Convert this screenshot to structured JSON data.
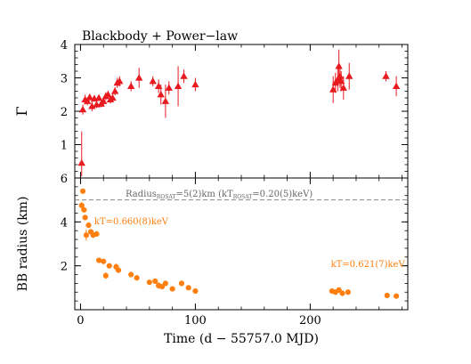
{
  "chart_data": [
    {
      "type": "scatter",
      "title": "Blackbody + Power−law",
      "ylabel": "Γ",
      "xlim": [
        -5,
        285
      ],
      "ylim": [
        0,
        4
      ],
      "yticks": [
        1,
        2,
        3,
        4
      ],
      "color": "#e8191f",
      "marker": "triangle",
      "points": [
        {
          "x": 1,
          "y": 0.45,
          "err": [
            0.4,
            0.95
          ]
        },
        {
          "x": 2,
          "y": 2.05,
          "err": [
            0.15,
            0.15
          ]
        },
        {
          "x": 4,
          "y": 2.35,
          "err": [
            0.15,
            0.15
          ]
        },
        {
          "x": 6,
          "y": 2.3,
          "err": [
            0.12,
            0.12
          ]
        },
        {
          "x": 8,
          "y": 2.42,
          "err": [
            0.1,
            0.1
          ]
        },
        {
          "x": 10,
          "y": 2.15,
          "err": [
            0.15,
            0.15
          ]
        },
        {
          "x": 12,
          "y": 2.38,
          "err": [
            0.1,
            0.1
          ]
        },
        {
          "x": 14,
          "y": 2.2,
          "err": [
            0.1,
            0.1
          ]
        },
        {
          "x": 16,
          "y": 2.4,
          "err": [
            0.1,
            0.1
          ]
        },
        {
          "x": 18,
          "y": 2.22,
          "err": [
            0.1,
            0.1
          ]
        },
        {
          "x": 20,
          "y": 2.3,
          "err": [
            0.1,
            0.1
          ]
        },
        {
          "x": 22,
          "y": 2.45,
          "err": [
            0.12,
            0.12
          ]
        },
        {
          "x": 24,
          "y": 2.5,
          "err": [
            0.12,
            0.12
          ]
        },
        {
          "x": 26,
          "y": 2.35,
          "err": [
            0.12,
            0.12
          ]
        },
        {
          "x": 28,
          "y": 2.4,
          "err": [
            0.12,
            0.12
          ]
        },
        {
          "x": 30,
          "y": 2.6,
          "err": [
            0.12,
            0.12
          ]
        },
        {
          "x": 32,
          "y": 2.85,
          "err": [
            0.15,
            0.15
          ]
        },
        {
          "x": 34,
          "y": 2.9,
          "err": [
            0.15,
            0.15
          ]
        },
        {
          "x": 44,
          "y": 2.75,
          "err": [
            0.15,
            0.15
          ]
        },
        {
          "x": 51,
          "y": 3.0,
          "err": [
            0.3,
            0.3
          ]
        },
        {
          "x": 63,
          "y": 2.9,
          "err": [
            0.15,
            0.15
          ]
        },
        {
          "x": 68,
          "y": 2.75,
          "err": [
            0.2,
            0.2
          ]
        },
        {
          "x": 70,
          "y": 2.5,
          "err": [
            0.3,
            0.3
          ]
        },
        {
          "x": 74,
          "y": 2.3,
          "err": [
            0.5,
            0.5
          ]
        },
        {
          "x": 77,
          "y": 2.7,
          "err": [
            0.2,
            0.2
          ]
        },
        {
          "x": 85,
          "y": 2.75,
          "err": [
            0.6,
            0.6
          ]
        },
        {
          "x": 90,
          "y": 3.05,
          "err": [
            0.2,
            0.2
          ]
        },
        {
          "x": 100,
          "y": 2.8,
          "err": [
            0.2,
            0.2
          ]
        },
        {
          "x": 220,
          "y": 2.65,
          "err": [
            0.4,
            0.4
          ]
        },
        {
          "x": 222,
          "y": 2.85,
          "err": [
            0.3,
            0.3
          ]
        },
        {
          "x": 224,
          "y": 2.95,
          "err": [
            0.35,
            0.35
          ]
        },
        {
          "x": 225,
          "y": 3.35,
          "err": [
            0.5,
            0.5
          ]
        },
        {
          "x": 226,
          "y": 3.05,
          "err": [
            0.35,
            0.35
          ]
        },
        {
          "x": 227,
          "y": 2.9,
          "err": [
            0.3,
            0.3
          ]
        },
        {
          "x": 229,
          "y": 2.7,
          "err": [
            0.35,
            0.35
          ]
        },
        {
          "x": 234,
          "y": 3.05,
          "err": [
            0.4,
            0.4
          ]
        },
        {
          "x": 266,
          "y": 3.05,
          "err": [
            0.15,
            0.15
          ]
        },
        {
          "x": 275,
          "y": 2.75,
          "err": [
            0.3,
            0.3
          ]
        }
      ]
    },
    {
      "type": "scatter",
      "ylabel": "BB radius (km)",
      "xlabel": "Time (d − 55757.0 MJD)",
      "xlim": [
        -5,
        285
      ],
      "ylim": [
        0,
        6
      ],
      "yticks": [
        2,
        4,
        6
      ],
      "xticks": [
        0,
        100,
        200
      ],
      "color": "#ff7f0e",
      "marker": "circle",
      "reference_line": {
        "y": 5.0,
        "label_main": "Radius",
        "label_sub1": "ROSAT",
        "label_mid": "=5(2)km (kT",
        "label_sub2": "ROSAT",
        "label_end": "=0.20(5)keV)"
      },
      "annotations": [
        {
          "text": "kT=0.660(8)keV",
          "x": 12,
          "y": 3.9
        },
        {
          "text": "kT=0.621(7)keV",
          "x": 218,
          "y": 1.95
        }
      ],
      "points": [
        {
          "x": 1,
          "y": 4.75,
          "err": 0.15
        },
        {
          "x": 2,
          "y": 5.4,
          "err": 0.1
        },
        {
          "x": 3,
          "y": 4.55,
          "err": 0.1
        },
        {
          "x": 4,
          "y": 4.2,
          "err": 0.1
        },
        {
          "x": 5,
          "y": 3.4,
          "err": 0.25
        },
        {
          "x": 7,
          "y": 3.85,
          "err": 0.1
        },
        {
          "x": 9,
          "y": 3.55,
          "err": 0.1
        },
        {
          "x": 11,
          "y": 3.4,
          "err": 0.1
        },
        {
          "x": 14,
          "y": 3.45,
          "err": 0.1
        },
        {
          "x": 16,
          "y": 2.25,
          "err": 0.1
        },
        {
          "x": 20,
          "y": 2.2,
          "err": 0.1
        },
        {
          "x": 22,
          "y": 1.55,
          "err": 0.15
        },
        {
          "x": 25,
          "y": 2.0,
          "err": 0.1
        },
        {
          "x": 31,
          "y": 1.95,
          "err": 0.15
        },
        {
          "x": 33,
          "y": 1.8,
          "err": 0.1
        },
        {
          "x": 44,
          "y": 1.6,
          "err": 0.1
        },
        {
          "x": 49,
          "y": 1.45,
          "err": 0.1
        },
        {
          "x": 60,
          "y": 1.25,
          "err": 0.1
        },
        {
          "x": 65,
          "y": 1.3,
          "err": 0.1
        },
        {
          "x": 68,
          "y": 1.1,
          "err": 0.15
        },
        {
          "x": 71,
          "y": 1.05,
          "err": 0.1
        },
        {
          "x": 74,
          "y": 1.2,
          "err": 0.1
        },
        {
          "x": 80,
          "y": 0.95,
          "err": 0.1
        },
        {
          "x": 88,
          "y": 1.2,
          "err": 0.1
        },
        {
          "x": 94,
          "y": 1.0,
          "err": 0.1
        },
        {
          "x": 100,
          "y": 0.85,
          "err": 0.1
        },
        {
          "x": 219,
          "y": 0.85,
          "err": 0.08
        },
        {
          "x": 222,
          "y": 0.8,
          "err": 0.08
        },
        {
          "x": 225,
          "y": 0.9,
          "err": 0.08
        },
        {
          "x": 228,
          "y": 0.75,
          "err": 0.08
        },
        {
          "x": 233,
          "y": 0.8,
          "err": 0.08
        },
        {
          "x": 267,
          "y": 0.65,
          "err": 0.08
        },
        {
          "x": 275,
          "y": 0.62,
          "err": 0.08
        }
      ]
    }
  ]
}
